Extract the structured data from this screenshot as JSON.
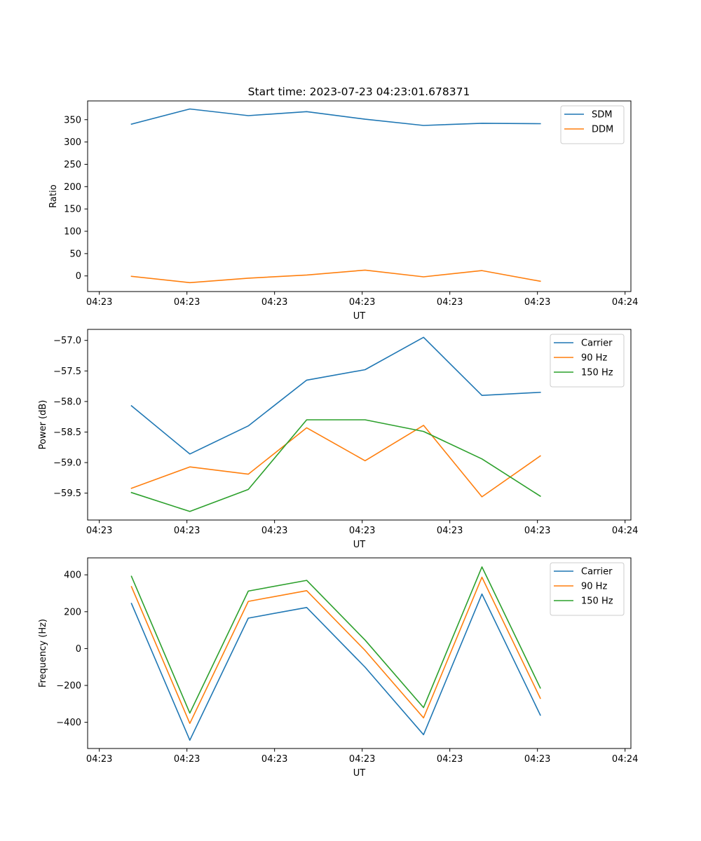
{
  "figure_title": "Start time: 2023-07-23 04:23:01.678371",
  "chart_data": [
    {
      "type": "line",
      "title": "Start time: 2023-07-23 04:23:01.678371",
      "xlabel": "UT",
      "ylabel": "Ratio",
      "xticks": [
        "04:23",
        "04:23",
        "04:23",
        "04:23",
        "04:23",
        "04:23",
        "04:24"
      ],
      "yticks": [
        0,
        50,
        100,
        150,
        200,
        250,
        300,
        350
      ],
      "ylim": [
        -35,
        392
      ],
      "xlim": [
        -0.2,
        9.1
      ],
      "grid": false,
      "legend_position": "top-right",
      "x": [
        0.55,
        1.55,
        2.55,
        3.55,
        4.55,
        5.55,
        6.55,
        7.55
      ],
      "series": [
        {
          "name": "SDM",
          "color": "#1f77b4",
          "values": [
            340,
            374,
            359,
            368,
            351,
            337,
            342,
            341
          ]
        },
        {
          "name": "DDM",
          "color": "#ff7f0e",
          "values": [
            -1,
            -15,
            -5,
            2,
            13,
            -2,
            12,
            -12
          ]
        }
      ]
    },
    {
      "type": "line",
      "title": "",
      "xlabel": "UT",
      "ylabel": "Power (dB)",
      "xticks": [
        "04:23",
        "04:23",
        "04:23",
        "04:23",
        "04:23",
        "04:23",
        "04:24"
      ],
      "yticks": [
        -59.5,
        -59.0,
        -58.5,
        -58.0,
        -57.5,
        -57.0
      ],
      "ytick_labels": [
        "−59.5",
        "−59.0",
        "−58.5",
        "−58.0",
        "−57.5",
        "−57.0"
      ],
      "ylim": [
        -59.94,
        -56.82
      ],
      "xlim": [
        -0.2,
        9.1
      ],
      "grid": false,
      "legend_position": "top-right",
      "x": [
        0.55,
        1.55,
        2.55,
        3.55,
        4.55,
        5.55,
        6.55,
        7.55
      ],
      "series": [
        {
          "name": "Carrier",
          "color": "#1f77b4",
          "values": [
            -58.07,
            -58.86,
            -58.4,
            -57.65,
            -57.48,
            -56.95,
            -57.9,
            -57.85
          ]
        },
        {
          "name": "90 Hz",
          "color": "#ff7f0e",
          "values": [
            -59.42,
            -59.07,
            -59.19,
            -58.43,
            -58.97,
            -58.39,
            -59.56,
            -58.89
          ]
        },
        {
          "name": "150 Hz",
          "color": "#2ca02c",
          "values": [
            -59.49,
            -59.8,
            -59.44,
            -58.3,
            -58.3,
            -58.49,
            -58.94,
            -59.55
          ]
        }
      ]
    },
    {
      "type": "line",
      "title": "",
      "xlabel": "UT",
      "ylabel": "Frequency (Hz)",
      "xticks": [
        "04:23",
        "04:23",
        "04:23",
        "04:23",
        "04:23",
        "04:23",
        "04:24"
      ],
      "yticks": [
        -400,
        -200,
        0,
        200,
        400
      ],
      "ytick_labels": [
        "−400",
        "−200",
        "0",
        "200",
        "400"
      ],
      "ylim": [
        -542,
        492
      ],
      "xlim": [
        -0.2,
        9.1
      ],
      "grid": false,
      "legend_position": "top-right",
      "x": [
        0.55,
        1.55,
        2.55,
        3.55,
        4.55,
        5.55,
        6.55,
        7.55
      ],
      "series": [
        {
          "name": "Carrier",
          "color": "#1f77b4",
          "values": [
            245,
            -497,
            165,
            223,
            -101,
            -467,
            296,
            -361
          ]
        },
        {
          "name": "90 Hz",
          "color": "#ff7f0e",
          "values": [
            336,
            -406,
            256,
            314,
            -10,
            -376,
            387,
            -270
          ]
        },
        {
          "name": "150 Hz",
          "color": "#2ca02c",
          "values": [
            392,
            -350,
            312,
            370,
            46,
            -320,
            443,
            -214
          ]
        }
      ]
    }
  ]
}
